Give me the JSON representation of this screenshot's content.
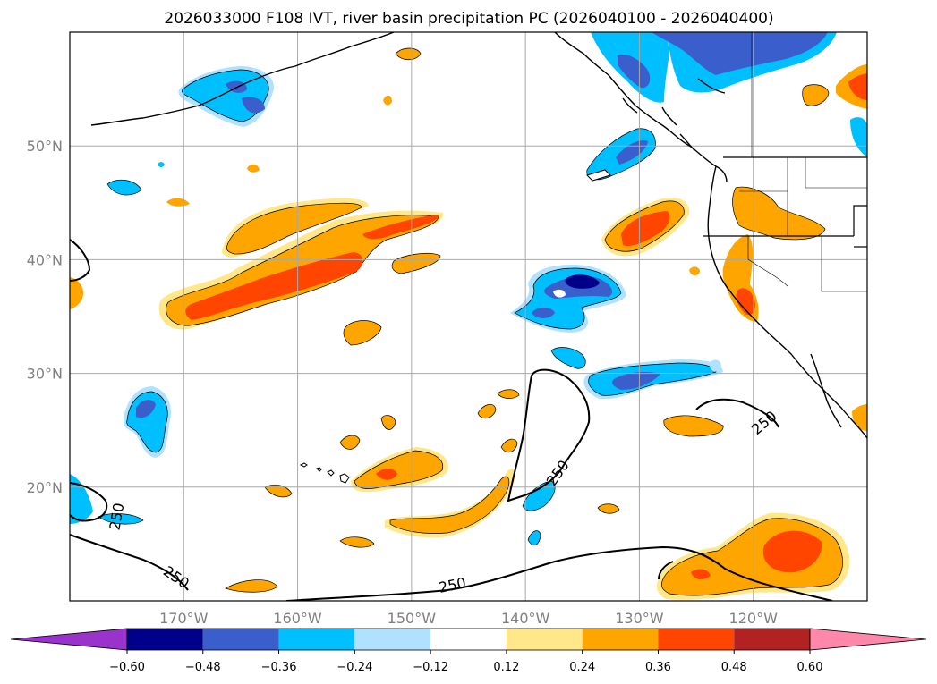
{
  "title": "2026033000 F108 IVT, river basin precipitation PC (2026040100 - 2026040400)",
  "map": {
    "lon_range": [
      -180,
      -110
    ],
    "lat_range": [
      10,
      60
    ],
    "lat_ticks": [
      {
        "value": 50,
        "label": "50°N"
      },
      {
        "value": 40,
        "label": "40°N"
      },
      {
        "value": 30,
        "label": "30°N"
      },
      {
        "value": 20,
        "label": "20°N"
      }
    ],
    "lon_ticks": [
      {
        "value": -170,
        "label": "170°W"
      },
      {
        "value": -160,
        "label": "160°W"
      },
      {
        "value": -150,
        "label": "150°W"
      },
      {
        "value": -140,
        "label": "140°W"
      },
      {
        "value": -130,
        "label": "130°W"
      },
      {
        "value": -120,
        "label": "120°W"
      }
    ],
    "contour_labels": [
      {
        "text": "250",
        "lon": -175.8,
        "lat": 17.4,
        "rot": -80
      },
      {
        "text": "250",
        "lon": -170.7,
        "lat": 12.0,
        "rot": 35
      },
      {
        "text": "250",
        "lon": -146.4,
        "lat": 11.3,
        "rot": -12
      },
      {
        "text": "250",
        "lon": -137.1,
        "lat": 21.2,
        "rot": -55
      },
      {
        "text": "250",
        "lon": -119.0,
        "lat": 25.6,
        "rot": -40
      }
    ]
  },
  "colorbar": {
    "tick_labels": [
      "−0.60",
      "−0.48",
      "−0.36",
      "−0.24",
      "−0.12",
      "0.12",
      "0.24",
      "0.36",
      "0.48",
      "0.60"
    ],
    "colors": [
      "#9933cc",
      "#00008b",
      "#3a5fcd",
      "#00bfff",
      "#b0e2ff",
      "#ffffff",
      "#ffe78a",
      "#ffa500",
      "#ff4500",
      "#b22222",
      "#ff88aa"
    ]
  },
  "legend_colors": {
    "pos1": "#ffe78a",
    "pos2": "#ffa500",
    "pos3": "#ff4500",
    "neg1": "#b0e2ff",
    "neg2": "#00bfff",
    "neg3": "#3a5fcd",
    "neg4": "#00008b"
  }
}
